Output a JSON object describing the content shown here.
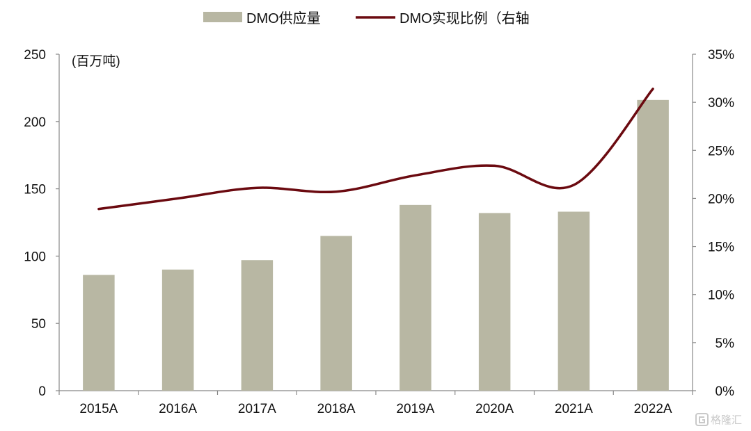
{
  "chart_data": {
    "type": "bar",
    "categories": [
      "2015A",
      "2016A",
      "2017A",
      "2018A",
      "2019A",
      "2020A",
      "2021A",
      "2022A"
    ],
    "series": [
      {
        "name": "DMO供应量",
        "type": "bar",
        "axis": "left",
        "color": "#b8b7a3",
        "values": [
          86,
          90,
          97,
          115,
          138,
          132,
          133,
          216
        ]
      },
      {
        "name": "DMO实现比例（右轴",
        "type": "line",
        "axis": "right",
        "color": "#6b0a10",
        "values": [
          18.9,
          20.0,
          21.1,
          20.7,
          22.4,
          23.4,
          21.4,
          31.4
        ]
      }
    ],
    "y_left": {
      "min": 0,
      "max": 250,
      "ticks": [
        "0",
        "50",
        "100",
        "150",
        "200",
        "250"
      ],
      "unit": "(百万吨)"
    },
    "y_right": {
      "min": 0,
      "max": 35,
      "ticks": [
        "0%",
        "5%",
        "10%",
        "15%",
        "20%",
        "25%",
        "30%",
        "35%"
      ]
    },
    "legend_position": "top-center",
    "grid": false
  },
  "watermark": {
    "text": "格隆汇",
    "icon": "gelonghui-logo-icon"
  }
}
